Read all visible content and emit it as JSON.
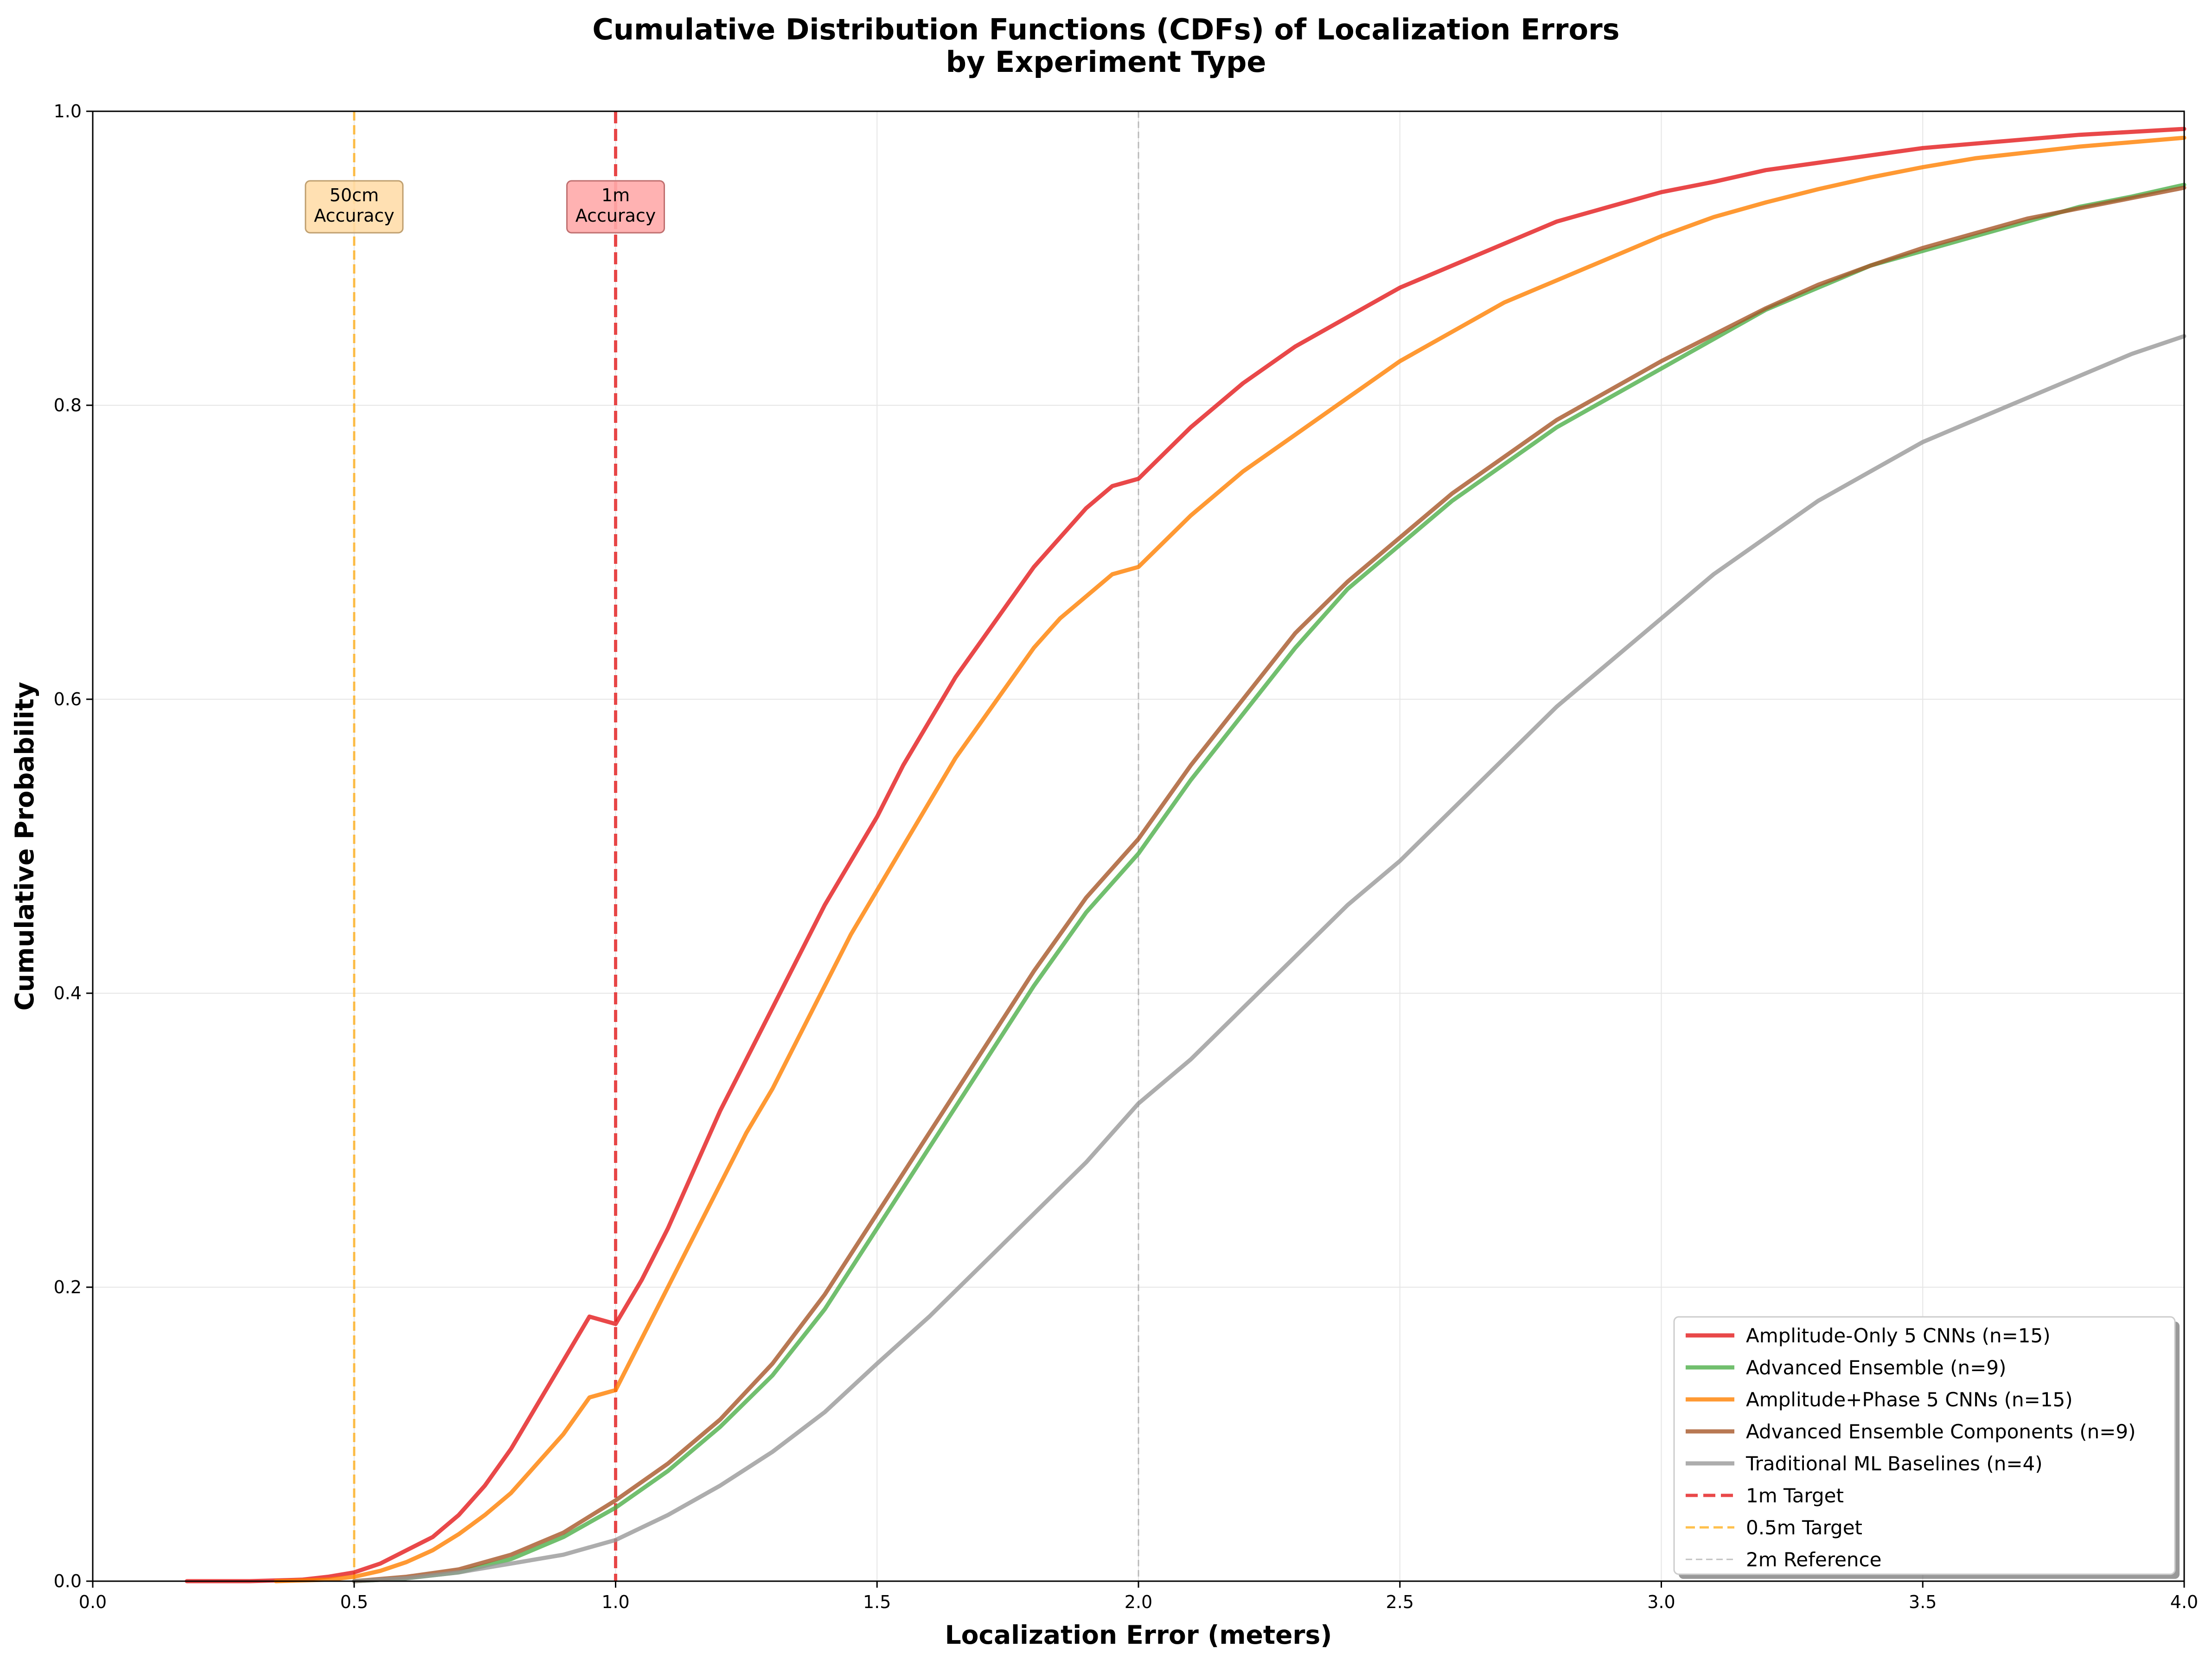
{
  "chart_data": {
    "type": "line",
    "title": [
      "Cumulative Distribution Functions (CDFs) of Localization Errors",
      "by Experiment Type"
    ],
    "xlabel": "Localization Error (meters)",
    "ylabel": "Cumulative Probability",
    "xlim": [
      0.0,
      4.0
    ],
    "ylim": [
      0.0,
      1.0
    ],
    "xticks": [
      "0.0",
      "0.5",
      "1.0",
      "1.5",
      "2.0",
      "2.5",
      "3.0",
      "3.5",
      "4.0"
    ],
    "yticks": [
      "0.0",
      "0.2",
      "0.4",
      "0.6",
      "0.8",
      "1.0"
    ],
    "grid": true,
    "legend_position": "bottom-right",
    "series": [
      {
        "name": "Amplitude-Only 5 CNNs (n=15)",
        "color": "#e41a1c",
        "x": [
          0.18,
          0.3,
          0.4,
          0.45,
          0.5,
          0.55,
          0.6,
          0.65,
          0.7,
          0.75,
          0.8,
          0.85,
          0.9,
          0.95,
          1.0,
          1.05,
          1.1,
          1.15,
          1.2,
          1.25,
          1.3,
          1.35,
          1.4,
          1.45,
          1.5,
          1.55,
          1.6,
          1.65,
          1.7,
          1.75,
          1.8,
          1.85,
          1.9,
          1.95,
          2.0,
          2.1,
          2.2,
          2.3,
          2.4,
          2.5,
          2.6,
          2.7,
          2.8,
          2.9,
          3.0,
          3.1,
          3.2,
          3.3,
          3.4,
          3.5,
          3.6,
          3.7,
          3.8,
          3.9,
          4.0
        ],
        "y": [
          0.0,
          0.0,
          0.001,
          0.003,
          0.006,
          0.012,
          0.021,
          0.03,
          0.045,
          0.065,
          0.09,
          0.12,
          0.15,
          0.18,
          0.175,
          0.205,
          0.24,
          0.28,
          0.32,
          0.355,
          0.39,
          0.425,
          0.46,
          0.49,
          0.52,
          0.555,
          0.585,
          0.615,
          0.64,
          0.665,
          0.69,
          0.71,
          0.73,
          0.745,
          0.75,
          0.785,
          0.815,
          0.84,
          0.86,
          0.88,
          0.895,
          0.91,
          0.925,
          0.935,
          0.945,
          0.952,
          0.96,
          0.965,
          0.97,
          0.975,
          0.978,
          0.981,
          0.984,
          0.986,
          0.988
        ]
      },
      {
        "name": "Advanced Ensemble (n=9)",
        "color": "#4daf4a",
        "x": [
          0.5,
          0.6,
          0.7,
          0.8,
          0.9,
          1.0,
          1.1,
          1.2,
          1.3,
          1.4,
          1.5,
          1.6,
          1.7,
          1.8,
          1.9,
          2.0,
          2.1,
          2.2,
          2.3,
          2.4,
          2.5,
          2.6,
          2.7,
          2.8,
          2.9,
          3.0,
          3.1,
          3.2,
          3.3,
          3.4,
          3.5,
          3.6,
          3.7,
          3.8,
          3.9,
          4.0
        ],
        "y": [
          0.0,
          0.002,
          0.006,
          0.015,
          0.03,
          0.05,
          0.075,
          0.105,
          0.14,
          0.185,
          0.24,
          0.295,
          0.35,
          0.405,
          0.455,
          0.495,
          0.545,
          0.59,
          0.635,
          0.675,
          0.705,
          0.735,
          0.76,
          0.785,
          0.805,
          0.825,
          0.845,
          0.865,
          0.88,
          0.895,
          0.905,
          0.915,
          0.925,
          0.935,
          0.942,
          0.95
        ]
      },
      {
        "name": "Amplitude+Phase 5 CNNs (n=15)",
        "color": "#ff7f00",
        "x": [
          0.35,
          0.45,
          0.5,
          0.55,
          0.6,
          0.65,
          0.7,
          0.75,
          0.8,
          0.85,
          0.9,
          0.95,
          1.0,
          1.05,
          1.1,
          1.15,
          1.2,
          1.25,
          1.3,
          1.35,
          1.4,
          1.45,
          1.5,
          1.55,
          1.6,
          1.65,
          1.7,
          1.75,
          1.8,
          1.85,
          1.9,
          1.95,
          2.0,
          2.1,
          2.2,
          2.3,
          2.4,
          2.5,
          2.6,
          2.7,
          2.8,
          2.9,
          3.0,
          3.1,
          3.2,
          3.3,
          3.4,
          3.5,
          3.6,
          3.7,
          3.8,
          3.9,
          4.0
        ],
        "y": [
          0.0,
          0.001,
          0.003,
          0.007,
          0.013,
          0.021,
          0.032,
          0.045,
          0.06,
          0.08,
          0.1,
          0.125,
          0.13,
          0.165,
          0.2,
          0.235,
          0.27,
          0.305,
          0.335,
          0.37,
          0.405,
          0.44,
          0.47,
          0.5,
          0.53,
          0.56,
          0.585,
          0.61,
          0.635,
          0.655,
          0.67,
          0.685,
          0.69,
          0.725,
          0.755,
          0.78,
          0.805,
          0.83,
          0.85,
          0.87,
          0.885,
          0.9,
          0.915,
          0.928,
          0.938,
          0.947,
          0.955,
          0.962,
          0.968,
          0.972,
          0.976,
          0.979,
          0.982
        ]
      },
      {
        "name": "Advanced Ensemble Components (n=9)",
        "color": "#a65628",
        "x": [
          0.5,
          0.6,
          0.7,
          0.8,
          0.9,
          1.0,
          1.1,
          1.2,
          1.3,
          1.4,
          1.5,
          1.6,
          1.7,
          1.8,
          1.9,
          2.0,
          2.1,
          2.2,
          2.3,
          2.4,
          2.5,
          2.6,
          2.7,
          2.8,
          2.9,
          3.0,
          3.1,
          3.2,
          3.3,
          3.4,
          3.5,
          3.6,
          3.7,
          3.8,
          3.9,
          4.0
        ],
        "y": [
          0.0,
          0.003,
          0.008,
          0.018,
          0.033,
          0.055,
          0.08,
          0.11,
          0.148,
          0.195,
          0.25,
          0.305,
          0.36,
          0.415,
          0.465,
          0.505,
          0.555,
          0.6,
          0.645,
          0.68,
          0.71,
          0.74,
          0.765,
          0.79,
          0.81,
          0.83,
          0.848,
          0.866,
          0.882,
          0.895,
          0.907,
          0.917,
          0.927,
          0.934,
          0.941,
          0.948
        ]
      },
      {
        "name": "Traditional ML Baselines (n=4)",
        "color": "#999999",
        "x": [
          0.5,
          0.6,
          0.7,
          0.8,
          0.9,
          1.0,
          1.1,
          1.2,
          1.3,
          1.4,
          1.5,
          1.6,
          1.7,
          1.8,
          1.9,
          2.0,
          2.1,
          2.2,
          2.3,
          2.4,
          2.5,
          2.6,
          2.7,
          2.8,
          2.9,
          3.0,
          3.1,
          3.2,
          3.3,
          3.4,
          3.5,
          3.6,
          3.7,
          3.8,
          3.9,
          4.0
        ],
        "y": [
          0.0,
          0.002,
          0.006,
          0.012,
          0.018,
          0.028,
          0.045,
          0.065,
          0.088,
          0.115,
          0.148,
          0.18,
          0.215,
          0.25,
          0.285,
          0.325,
          0.355,
          0.39,
          0.425,
          0.46,
          0.49,
          0.525,
          0.56,
          0.595,
          0.625,
          0.655,
          0.685,
          0.71,
          0.735,
          0.755,
          0.775,
          0.79,
          0.805,
          0.82,
          0.835,
          0.847
        ]
      }
    ],
    "reference_lines": [
      {
        "name": "1m Target",
        "x": 1.0,
        "color": "#e41a1c",
        "style": "dashed-thick"
      },
      {
        "name": "0.5m Target",
        "x": 0.5,
        "color": "#ffa500",
        "style": "dashed"
      },
      {
        "name": "2m Reference",
        "x": 2.0,
        "color": "#999999",
        "style": "dashed-thin"
      }
    ],
    "annotations": [
      {
        "text": [
          "50cm",
          "Accuracy"
        ],
        "x": 0.5,
        "y": 0.935,
        "bg": "#ffddaa",
        "edge": "#c0a070"
      },
      {
        "text": [
          "1m",
          "Accuracy"
        ],
        "x": 1.0,
        "y": 0.935,
        "bg": "#ffaaaa",
        "edge": "#c07070"
      }
    ]
  }
}
